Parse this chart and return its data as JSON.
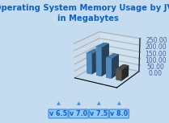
{
  "title_line1": "Operating System Memory Usage by JVM",
  "title_line2": "in Megabytes",
  "categories": [
    "v 6.5",
    "v 7.0",
    "v 7.5",
    "v 8.0"
  ],
  "values": [
    155,
    215,
    148,
    80
  ],
  "ylim": [
    0,
    250
  ],
  "yticks": [
    0.0,
    50.0,
    100.0,
    150.0,
    200.0,
    250.0
  ],
  "bar_color_blue": "#5b9bd5",
  "bar_color_dark": "#606060",
  "bg_color": "#c5dcf0",
  "grid_color": "#ffffff",
  "title_color": "#1060c0",
  "label_fg": "#1060c0",
  "label_bg": "#90c8f8",
  "label_edge": "#4090e0",
  "tick_color": "#4060a0",
  "title_fontsize": 7.2,
  "tick_fontsize": 5.5,
  "label_fontsize": 5.8,
  "elev": 20,
  "azim": -60
}
